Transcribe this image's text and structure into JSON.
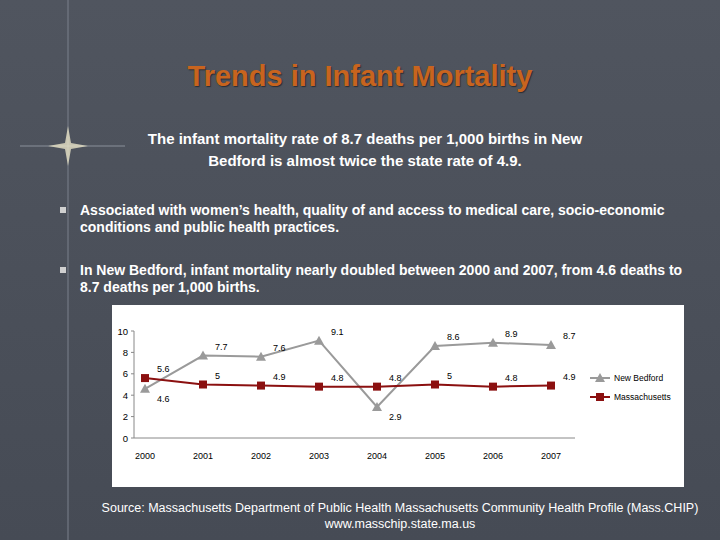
{
  "chart_data": {
    "type": "line",
    "title": "Trends in Infant Mortality",
    "subtitle": "The infant mortality rate of 8.7 deaths per 1,000 births in New Bedford is almost twice the state rate of 4.9.",
    "annotations": [
      "Associated with women’s health, quality of and access to medical care, socio-economic conditions and public health practices.",
      "In New Bedford, infant mortality nearly doubled between 2000 and 2007, from 4.6 deaths to 8.7 deaths per 1,000 births."
    ],
    "source": "Source: Massachusetts Department of Public Health Massachusetts Community Health Profile (Mass.CHIP) www.masschip.state.ma.us",
    "categories": [
      "2000",
      "2001",
      "2002",
      "2003",
      "2004",
      "2005",
      "2006",
      "2007"
    ],
    "series": [
      {
        "name": "New Bedford",
        "color": "#9a9a9a",
        "marker": "triangle",
        "line_style": "solid",
        "values": [
          4.6,
          7.7,
          7.6,
          9.1,
          2.9,
          8.6,
          8.9,
          8.7
        ]
      },
      {
        "name": "Massachusetts",
        "color": "#8b1010",
        "marker": "square",
        "line_style": "solid",
        "values": [
          5.6,
          5,
          4.9,
          4.8,
          4.8,
          5,
          4.8,
          4.9
        ]
      }
    ],
    "ylim": [
      0,
      10
    ],
    "yticks": [
      0,
      2,
      4,
      6,
      8,
      10
    ],
    "grid": false,
    "legend": "right",
    "data_labels": true
  }
}
